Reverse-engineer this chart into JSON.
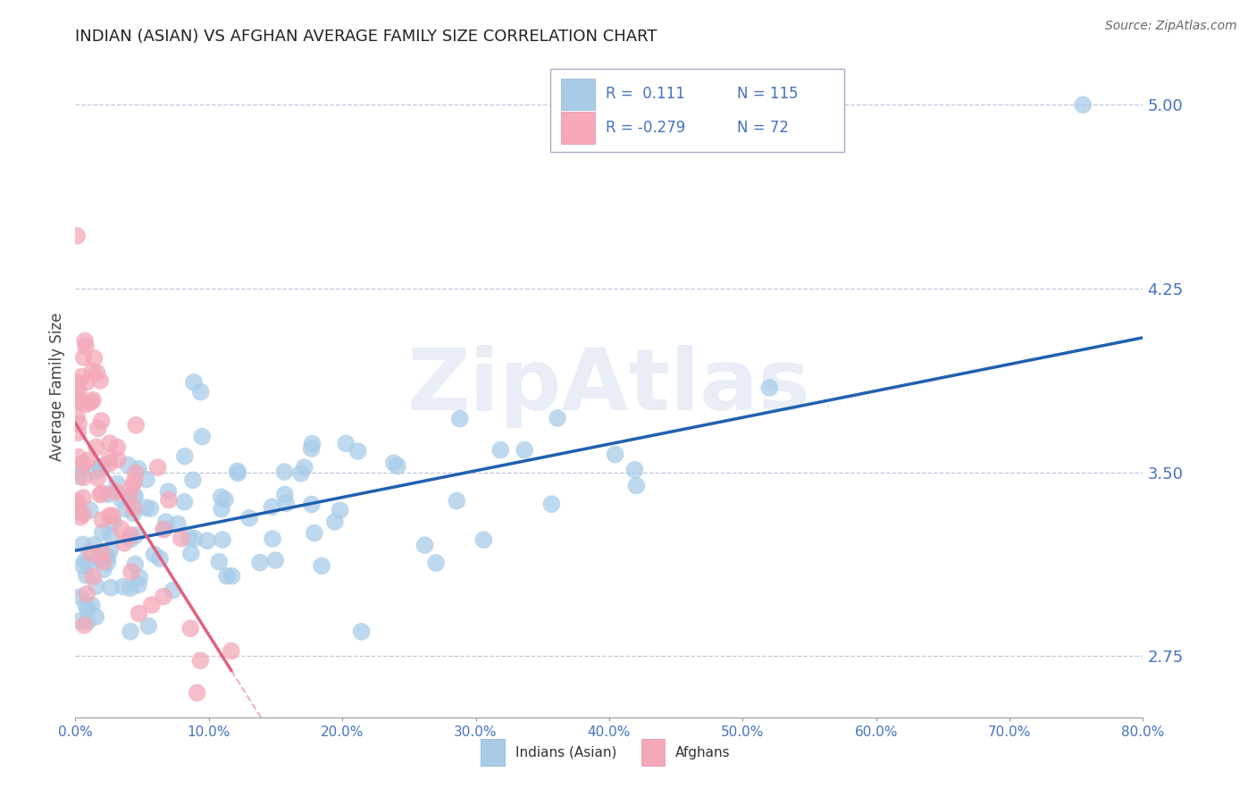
{
  "title": "INDIAN (ASIAN) VS AFGHAN AVERAGE FAMILY SIZE CORRELATION CHART",
  "source": "Source: ZipAtlas.com",
  "ylabel": "Average Family Size",
  "xlim": [
    0.0,
    0.8
  ],
  "ylim": [
    2.5,
    5.2
  ],
  "yticks": [
    2.75,
    3.5,
    4.25,
    5.0
  ],
  "xticks": [
    0.0,
    0.1,
    0.2,
    0.3,
    0.4,
    0.5,
    0.6,
    0.7,
    0.8
  ],
  "xtick_labels": [
    "0.0%",
    "10.0%",
    "20.0%",
    "30.0%",
    "40.0%",
    "50.0%",
    "60.0%",
    "70.0%",
    "80.0%"
  ],
  "R_indian": 0.111,
  "N_indian": 115,
  "R_afghan": -0.279,
  "N_afghan": 72,
  "color_indian": "#a8cce8",
  "color_afghan": "#f4a8b8",
  "line_color_indian": "#2060b0",
  "line_color_afghan": "#e06080",
  "legend_labels": [
    "Indians (Asian)",
    "Afghans"
  ],
  "watermark": "ZipAtlas",
  "title_color": "#333333",
  "axis_color": "#4472c4",
  "background_color": "#ffffff"
}
